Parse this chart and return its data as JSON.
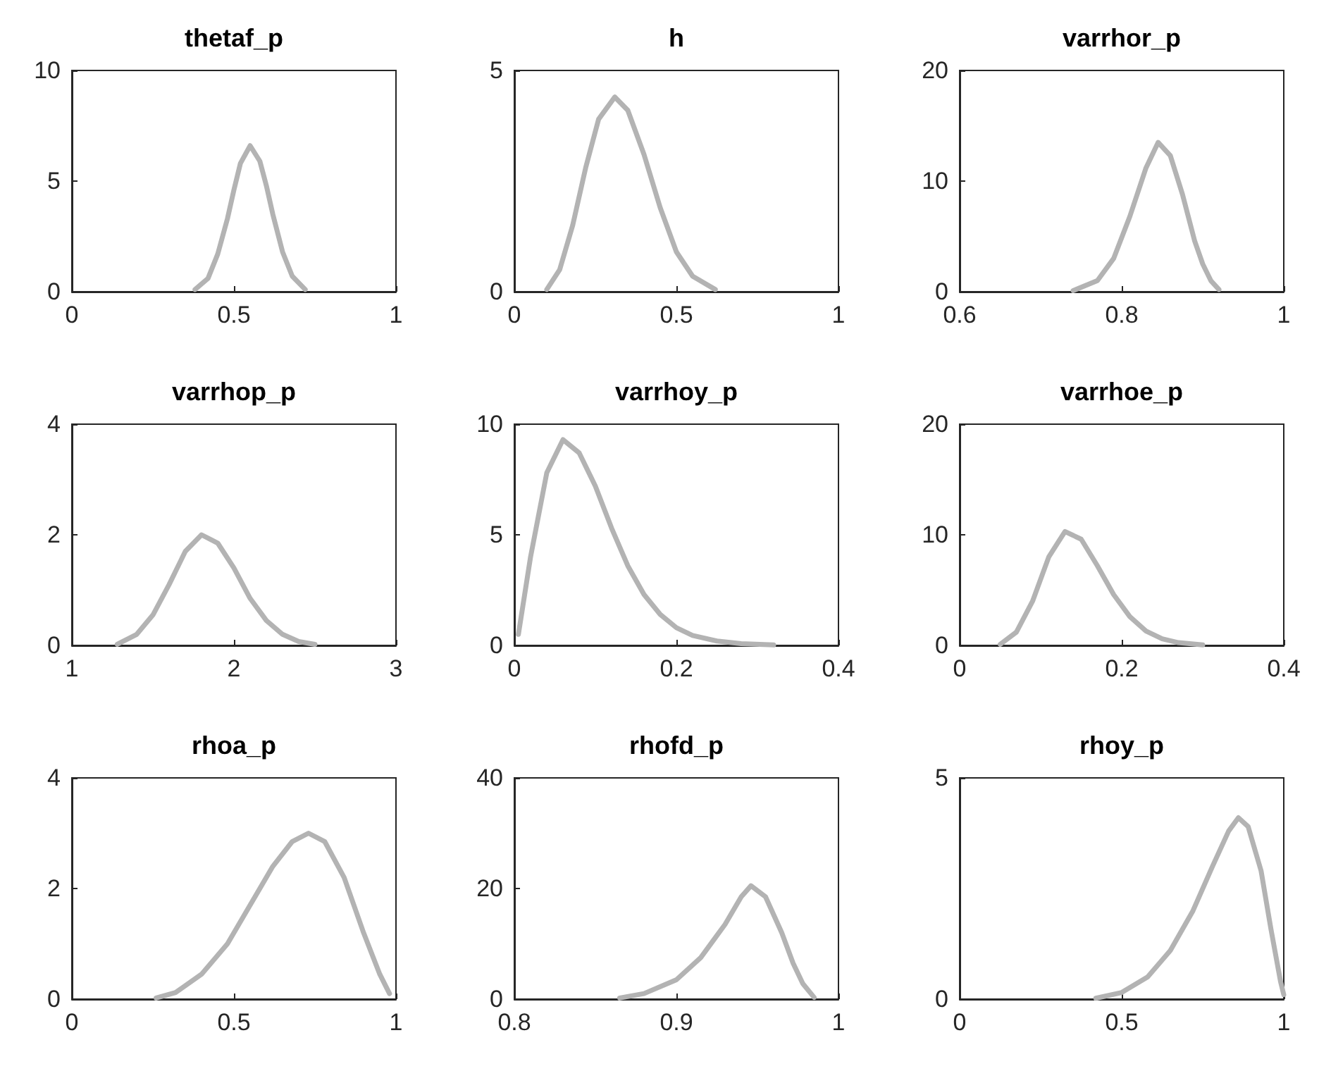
{
  "chart_data": [
    {
      "type": "line",
      "title": "thetaf_p",
      "x": [
        0.38,
        0.42,
        0.45,
        0.48,
        0.5,
        0.52,
        0.55,
        0.58,
        0.6,
        0.62,
        0.65,
        0.68,
        0.72
      ],
      "series": [
        {
          "color": "#b3b3b3",
          "values": [
            0.1,
            0.6,
            1.7,
            3.3,
            4.6,
            5.8,
            6.6,
            5.9,
            4.8,
            3.5,
            1.8,
            0.7,
            0.1
          ]
        }
      ],
      "xlim": [
        0,
        1
      ],
      "ylim": [
        0,
        10
      ],
      "xticks": [
        0,
        0.5,
        1
      ],
      "yticks": [
        0,
        5,
        10
      ]
    },
    {
      "type": "line",
      "title": "h",
      "x": [
        0.1,
        0.14,
        0.18,
        0.22,
        0.26,
        0.31,
        0.35,
        0.4,
        0.45,
        0.5,
        0.55,
        0.62
      ],
      "series": [
        {
          "color": "#b3b3b3",
          "values": [
            0.05,
            0.5,
            1.5,
            2.8,
            3.9,
            4.4,
            4.1,
            3.1,
            1.9,
            0.9,
            0.35,
            0.05
          ]
        }
      ],
      "xlim": [
        0,
        1
      ],
      "ylim": [
        0,
        5
      ],
      "xticks": [
        0,
        0.5,
        1
      ],
      "yticks": [
        0,
        5
      ]
    },
    {
      "type": "line",
      "title": "varrhor_p",
      "x": [
        0.74,
        0.77,
        0.79,
        0.81,
        0.83,
        0.845,
        0.86,
        0.875,
        0.89,
        0.9,
        0.91,
        0.92
      ],
      "series": [
        {
          "color": "#b3b3b3",
          "values": [
            0.1,
            1,
            3,
            6.8,
            11.2,
            13.5,
            12.3,
            8.8,
            4.6,
            2.5,
            1,
            0.2
          ]
        }
      ],
      "xlim": [
        0.6,
        1
      ],
      "ylim": [
        0,
        20
      ],
      "xticks": [
        0.6,
        0.8,
        1
      ],
      "yticks": [
        0,
        10,
        20
      ]
    },
    {
      "type": "line",
      "title": "varrhop_p",
      "x": [
        1.28,
        1.4,
        1.5,
        1.6,
        1.7,
        1.8,
        1.9,
        2.0,
        2.1,
        2.2,
        2.3,
        2.4,
        2.5
      ],
      "series": [
        {
          "color": "#b3b3b3",
          "values": [
            0.02,
            0.2,
            0.55,
            1.1,
            1.7,
            2.0,
            1.85,
            1.4,
            0.85,
            0.45,
            0.2,
            0.07,
            0.02
          ]
        }
      ],
      "xlim": [
        1,
        3
      ],
      "ylim": [
        0,
        4
      ],
      "xticks": [
        1,
        2,
        3
      ],
      "yticks": [
        0,
        2,
        4
      ]
    },
    {
      "type": "line",
      "title": "varrhoy_p",
      "x": [
        0.005,
        0.02,
        0.04,
        0.06,
        0.08,
        0.1,
        0.12,
        0.14,
        0.16,
        0.18,
        0.2,
        0.22,
        0.25,
        0.28,
        0.32
      ],
      "series": [
        {
          "color": "#b3b3b3",
          "values": [
            0.5,
            4,
            7.8,
            9.3,
            8.7,
            7.2,
            5.3,
            3.6,
            2.3,
            1.4,
            0.8,
            0.45,
            0.2,
            0.08,
            0.02
          ]
        }
      ],
      "xlim": [
        0,
        0.4
      ],
      "ylim": [
        0,
        10
      ],
      "xticks": [
        0,
        0.2,
        0.4
      ],
      "yticks": [
        0,
        5,
        10
      ]
    },
    {
      "type": "line",
      "title": "varrhoe_p",
      "x": [
        0.05,
        0.07,
        0.09,
        0.11,
        0.13,
        0.15,
        0.17,
        0.19,
        0.21,
        0.23,
        0.25,
        0.27,
        0.3
      ],
      "series": [
        {
          "color": "#b3b3b3",
          "values": [
            0.1,
            1.2,
            4,
            8,
            10.3,
            9.6,
            7.2,
            4.6,
            2.6,
            1.3,
            0.6,
            0.25,
            0.05
          ]
        }
      ],
      "xlim": [
        0,
        0.4
      ],
      "ylim": [
        0,
        20
      ],
      "xticks": [
        0,
        0.2,
        0.4
      ],
      "yticks": [
        0,
        10,
        20
      ]
    },
    {
      "type": "line",
      "title": "rhoa_p",
      "x": [
        0.26,
        0.32,
        0.4,
        0.48,
        0.55,
        0.62,
        0.68,
        0.73,
        0.78,
        0.84,
        0.9,
        0.95,
        0.98
      ],
      "series": [
        {
          "color": "#b3b3b3",
          "values": [
            0.02,
            0.12,
            0.45,
            1.0,
            1.7,
            2.4,
            2.85,
            3.0,
            2.85,
            2.2,
            1.2,
            0.45,
            0.1
          ]
        }
      ],
      "xlim": [
        0,
        1
      ],
      "ylim": [
        0,
        4
      ],
      "xticks": [
        0,
        0.5,
        1
      ],
      "yticks": [
        0,
        2,
        4
      ]
    },
    {
      "type": "line",
      "title": "rhofd_p",
      "x": [
        0.865,
        0.88,
        0.9,
        0.915,
        0.93,
        0.94,
        0.946,
        0.955,
        0.965,
        0.972,
        0.978,
        0.985
      ],
      "series": [
        {
          "color": "#b3b3b3",
          "values": [
            0.2,
            1,
            3.5,
            7.5,
            13.5,
            18.5,
            20.5,
            18.5,
            12,
            6.5,
            2.8,
            0.3
          ]
        }
      ],
      "xlim": [
        0.8,
        1
      ],
      "ylim": [
        0,
        40
      ],
      "xticks": [
        0.8,
        0.9,
        1
      ],
      "yticks": [
        0,
        20,
        40
      ]
    },
    {
      "type": "line",
      "title": "rhoy_p",
      "x": [
        0.42,
        0.5,
        0.58,
        0.65,
        0.72,
        0.78,
        0.83,
        0.86,
        0.89,
        0.93,
        0.96,
        0.99,
        1.0
      ],
      "series": [
        {
          "color": "#b3b3b3",
          "values": [
            0.02,
            0.15,
            0.5,
            1.1,
            2.0,
            3.0,
            3.8,
            4.1,
            3.9,
            2.9,
            1.6,
            0.4,
            0.1
          ]
        }
      ],
      "xlim": [
        0,
        1
      ],
      "ylim": [
        0,
        5
      ],
      "xticks": [
        0,
        0.5,
        1
      ],
      "yticks": [
        0,
        5
      ]
    }
  ]
}
